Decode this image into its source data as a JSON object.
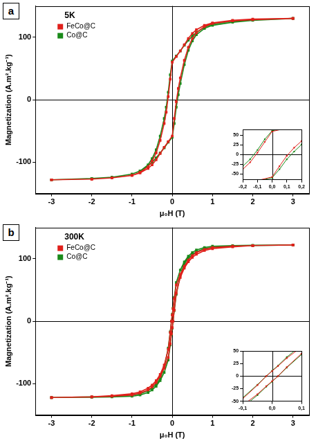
{
  "chart_data": [
    {
      "panel": "a",
      "type": "scatter",
      "title": "5K",
      "x_label": "μ₀H (T)",
      "y_label": "Magnetization (A.m².kg⁻¹)",
      "xlim": [
        -3.4,
        3.4
      ],
      "xticks": [
        -3,
        -2,
        -1,
        0,
        1,
        2,
        3
      ],
      "ylim": [
        -150,
        150
      ],
      "yticks": [
        -100,
        0,
        100
      ],
      "grid": false,
      "legend": "upper left",
      "marker": "square",
      "line_style": "solid",
      "series": [
        {
          "name": "FeCo@C",
          "color": "#e0201b",
          "x": [
            3,
            2,
            1.5,
            1,
            0.8,
            0.6,
            0.5,
            0.4,
            0.3,
            0.2,
            0.1,
            0,
            -0.05,
            -0.1,
            -0.15,
            -0.2,
            -0.3,
            -0.4,
            -0.5,
            -0.6,
            -0.8,
            -1,
            -1.5,
            -2,
            -3,
            -3,
            -2,
            -1.5,
            -1,
            -0.8,
            -0.6,
            -0.5,
            -0.4,
            -0.3,
            -0.2,
            -0.1,
            0,
            0.05,
            0.1,
            0.15,
            0.2,
            0.3,
            0.4,
            0.5,
            0.6,
            0.8,
            1,
            1.5,
            2,
            3
          ],
          "values": [
            130,
            129,
            127,
            123,
            119,
            112,
            106,
            98,
            88,
            78,
            69,
            60,
            33,
            5,
            -20,
            -38,
            -65,
            -85,
            -98,
            -107,
            -116,
            -121,
            -125,
            -127,
            -128,
            -128,
            -127,
            -125,
            -121,
            -117,
            -110,
            -104,
            -96,
            -86,
            -76,
            -67,
            -58,
            -30,
            -3,
            18,
            35,
            63,
            84,
            98,
            107,
            117,
            122,
            126,
            128,
            130
          ]
        },
        {
          "name": "Co@C",
          "color": "#1a8a1a",
          "x": [
            3,
            2,
            1.5,
            1,
            0.8,
            0.6,
            0.5,
            0.4,
            0.3,
            0.2,
            0.1,
            0,
            -0.05,
            -0.1,
            -0.15,
            -0.2,
            -0.3,
            -0.4,
            -0.5,
            -0.6,
            -0.8,
            -1,
            -1.5,
            -2,
            -3,
            -3,
            -2,
            -1.5,
            -1,
            -0.8,
            -0.6,
            -0.5,
            -0.4,
            -0.3,
            -0.2,
            -0.1,
            0,
            0.05,
            0.1,
            0.15,
            0.2,
            0.3,
            0.4,
            0.5,
            0.6,
            0.8,
            1,
            1.5,
            2,
            3
          ],
          "values": [
            130,
            128,
            126,
            121,
            116,
            108,
            102,
            95,
            87,
            78,
            70,
            62,
            40,
            12,
            -12,
            -30,
            -58,
            -80,
            -94,
            -104,
            -114,
            -119,
            -124,
            -126,
            -128,
            -128,
            -126,
            -124,
            -119,
            -114,
            -106,
            -100,
            -93,
            -85,
            -77,
            -68,
            -60,
            -38,
            -12,
            8,
            26,
            56,
            79,
            94,
            104,
            114,
            119,
            124,
            127,
            130
          ]
        }
      ],
      "inset": {
        "type": "scatter",
        "marker": "square",
        "line_style": "solid",
        "grid": false,
        "xlim": [
          -0.2,
          0.2
        ],
        "xticks": [
          {
            "value": -0.2,
            "label": "-0,2"
          },
          {
            "value": -0.1,
            "label": "-0,1"
          },
          {
            "value": 0,
            "label": "0,0"
          },
          {
            "value": 0.1,
            "label": "0,1"
          },
          {
            "value": 0.2,
            "label": "0,2"
          }
        ],
        "ylim": [
          -65,
          65
        ],
        "yticks": [
          -50,
          -25,
          0,
          25,
          50
        ]
      }
    },
    {
      "panel": "b",
      "type": "scatter",
      "title": "300K",
      "x_label": "μ₀H (T)",
      "y_label": "Magnetization (A.m².kg⁻¹)",
      "xlim": [
        -3.4,
        3.4
      ],
      "xticks": [
        -3,
        -2,
        -1,
        0,
        1,
        2,
        3
      ],
      "ylim": [
        -150,
        150
      ],
      "yticks": [
        -100,
        0,
        100
      ],
      "grid": false,
      "legend": "upper left",
      "marker": "square",
      "line_style": "solid",
      "series": [
        {
          "name": "FeCo@C",
          "color": "#e0201b",
          "x": [
            3,
            2,
            1.5,
            1,
            0.8,
            0.6,
            0.5,
            0.4,
            0.3,
            0.2,
            0.1,
            0.05,
            0.02,
            0,
            -0.02,
            -0.05,
            -0.1,
            -0.2,
            -0.3,
            -0.4,
            -0.5,
            -0.6,
            -0.8,
            -1,
            -1.5,
            -2,
            -3,
            -3,
            -2,
            -1.5,
            -1,
            -0.8,
            -0.6,
            -0.5,
            -0.4,
            -0.3,
            -0.2,
            -0.1,
            -0.05,
            -0.02,
            0,
            0.02,
            0.05,
            0.1,
            0.2,
            0.3,
            0.4,
            0.5,
            0.6,
            0.8,
            1,
            1.5,
            2,
            3
          ],
          "values": [
            122,
            121,
            120,
            118,
            115,
            110,
            105,
            98,
            88,
            75,
            58,
            36,
            20,
            10,
            0,
            -18,
            -45,
            -70,
            -85,
            -95,
            -102,
            -107,
            -113,
            -116,
            -119,
            -121,
            -122,
            -122,
            -121,
            -120,
            -118,
            -115,
            -110,
            -105,
            -98,
            -88,
            -75,
            -58,
            -36,
            -20,
            -10,
            0,
            18,
            45,
            70,
            85,
            95,
            102,
            107,
            113,
            116,
            119,
            121,
            122
          ]
        },
        {
          "name": "Co@C",
          "color": "#1a8a1a",
          "x": [
            3,
            2,
            1.5,
            1,
            0.8,
            0.6,
            0.5,
            0.4,
            0.3,
            0.2,
            0.1,
            0.05,
            0.02,
            0,
            -0.02,
            -0.05,
            -0.1,
            -0.2,
            -0.3,
            -0.4,
            -0.5,
            -0.6,
            -0.8,
            -1,
            -1.5,
            -2,
            -3,
            -3,
            -2,
            -1.5,
            -1,
            -0.8,
            -0.6,
            -0.5,
            -0.4,
            -0.3,
            -0.2,
            -0.1,
            -0.05,
            -0.02,
            0,
            0.02,
            0.05,
            0.1,
            0.2,
            0.3,
            0.4,
            0.5,
            0.6,
            0.8,
            1,
            1.5,
            2,
            3
          ],
          "values": [
            122,
            121.5,
            121,
            120,
            118,
            114,
            110,
            104,
            95,
            82,
            62,
            38,
            21,
            11,
            0,
            -17,
            -43,
            -74,
            -92,
            -101,
            -107,
            -111,
            -116,
            -118,
            -120,
            -121,
            -122,
            -122,
            -121.5,
            -121,
            -120,
            -118,
            -114,
            -110,
            -104,
            -95,
            -82,
            -62,
            -38,
            -21,
            -11,
            0,
            17,
            43,
            74,
            92,
            101,
            107,
            111,
            116,
            118,
            120,
            121,
            122
          ]
        }
      ],
      "inset": {
        "type": "scatter",
        "marker": "square",
        "line_style": "solid",
        "grid": false,
        "xlim": [
          -0.1,
          0.1
        ],
        "xticks": [
          {
            "value": -0.1,
            "label": "-0,1"
          },
          {
            "value": 0,
            "label": "0,0"
          },
          {
            "value": 0.1,
            "label": "0,1"
          }
        ],
        "ylim": [
          -50,
          50
        ],
        "yticks": [
          -50,
          -25,
          0,
          25,
          50
        ]
      }
    }
  ]
}
